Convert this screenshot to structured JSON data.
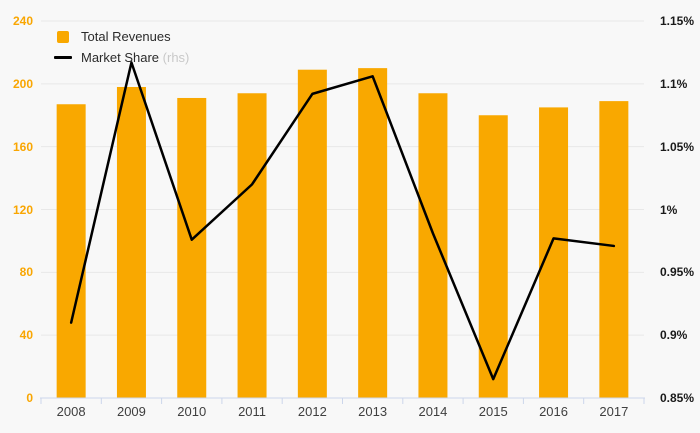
{
  "chart_data": {
    "type": "bar+line-combo",
    "categories": [
      "2008",
      "2009",
      "2010",
      "2011",
      "2012",
      "2013",
      "2014",
      "2015",
      "2016",
      "2017"
    ],
    "series": [
      {
        "name": "Total Revenues",
        "type": "bar",
        "axis": "left",
        "values": [
          187,
          198,
          191,
          194,
          209,
          210,
          194,
          180,
          185,
          189
        ]
      },
      {
        "name": "Market Share",
        "type": "line",
        "axis": "right",
        "axis_note": "(rhs)",
        "values_percent": [
          0.91,
          1.117,
          0.976,
          1.02,
          1.092,
          1.106,
          0.981,
          0.865,
          0.977,
          0.971
        ]
      }
    ],
    "left_axis": {
      "min": 0,
      "max": 240,
      "tick_values": [
        0,
        40,
        80,
        120,
        160,
        200,
        240
      ],
      "tick_labels": [
        "0",
        "40",
        "80",
        "120",
        "160",
        "200",
        "240"
      ]
    },
    "right_axis": {
      "min": 0.85,
      "max": 1.15,
      "tick_values": [
        0.85,
        0.9,
        0.95,
        1.0,
        1.05,
        1.1,
        1.15
      ],
      "tick_labels": [
        "0.85%",
        "0.9%",
        "0.95%",
        "1%",
        "1.05%",
        "1.1%",
        "1.15%"
      ]
    },
    "title": "",
    "grid": true,
    "legend_position": "top-left"
  },
  "legend": {
    "bar_label": "Total Revenues",
    "line_label": "Market Share",
    "line_note": "(rhs)"
  },
  "colors": {
    "background": "#f8f8f8",
    "bar": "#f9a800",
    "line": "#000000",
    "grid": "#e8e8e8",
    "axis_line": "#ccd6eb",
    "left_axis_label": "#f9a602",
    "right_axis_label": "#1a1a1a",
    "x_axis_label": "#3f3f3f",
    "legend_text": "#2b2b2b",
    "rhs_text": "#c9c9c9"
  }
}
